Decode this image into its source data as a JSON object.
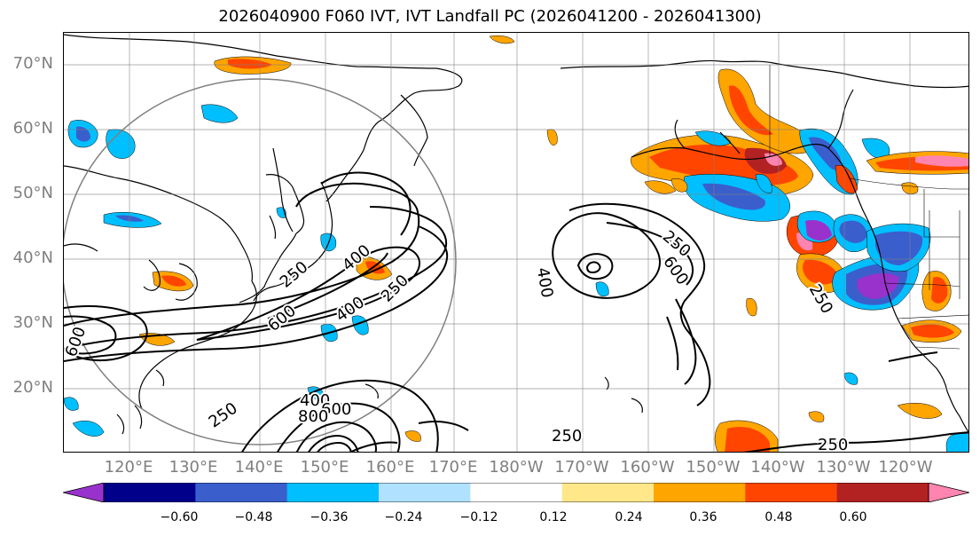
{
  "title": "2026040900 F060 IVT, IVT Landfall PC (2026041200 - 2026041300)",
  "lat_labels": [
    "70°N",
    "60°N",
    "50°N",
    "40°N",
    "30°N",
    "20°N"
  ],
  "lon_labels": [
    "120°E",
    "130°E",
    "140°E",
    "150°E",
    "160°E",
    "170°E",
    "180°W",
    "170°W",
    "160°W",
    "150°W",
    "140°W",
    "130°W",
    "120°W"
  ],
  "contour_labels": [
    "250",
    "400",
    "600",
    "250",
    "400",
    "600",
    "250",
    "400",
    "600",
    "800",
    "250",
    "250",
    "250",
    "400",
    "600",
    "250"
  ],
  "colorbar": {
    "ticks": [
      "−0.60",
      "−0.48",
      "−0.36",
      "−0.24",
      "−0.12",
      "0.12",
      "0.24",
      "0.36",
      "0.48",
      "0.60"
    ],
    "colors": [
      "#9932cc",
      "#00008b",
      "#3a5fcd",
      "#00bfff",
      "#b0e2ff",
      "#ffffff",
      "#ffe78a",
      "#ffa500",
      "#ff4500",
      "#b22222",
      "#ff85b0"
    ]
  },
  "chart_data": {
    "type": "heatmap",
    "title": "2026040900 F060 IVT, IVT Landfall PC (2026041200 - 2026041300)",
    "map_extent": {
      "lon_min": 112,
      "lon_max": 250,
      "lat_min": 10,
      "lat_max": 75
    },
    "lat_ticks": [
      70,
      60,
      50,
      40,
      30,
      20
    ],
    "lon_ticks": [
      120,
      130,
      140,
      150,
      160,
      170,
      180,
      190,
      200,
      210,
      220,
      230,
      240
    ],
    "shaded_field_levels": [
      -0.6,
      -0.48,
      -0.36,
      -0.24,
      -0.12,
      0.12,
      0.24,
      0.36,
      0.48,
      0.6
    ],
    "contour_levels": [
      250,
      400,
      600,
      800
    ]
  }
}
